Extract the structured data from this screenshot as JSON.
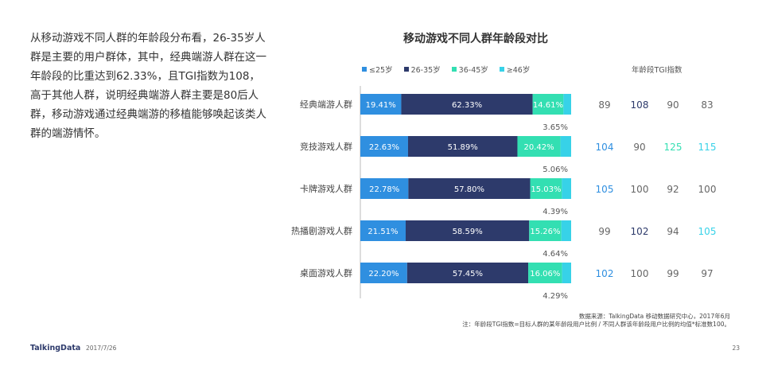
{
  "intro_text": "从移动游戏不同人群的年龄段分布看，26-35岁人群是主要的用户群体，其中，经典端游人群在这一年龄段的比重达到62.33%，且TGI指数为108，高于其他人群，说明经典端游人群主要是80后人群，移动游戏通过经典端游的移植能够唤起该类人群的端游情怀。",
  "footer": {
    "brand": "TalkingData",
    "date": "2017/7/26",
    "page": "23",
    "source_line1": "数据来源：TalkingData 移动数据研究中心，2017年6月",
    "source_line2": "注：年龄段TGI指数=目标人群的某年龄段用户比例 / 不同人群该年龄段用户比例的均值*标准数100。"
  },
  "colors": {
    "s1": "#2f8fe0",
    "s2": "#2d3a6b",
    "s3": "#33dfb2",
    "s4": "#37d2e8"
  },
  "chart_data": {
    "type": "bar",
    "orientation": "horizontal",
    "stacked": true,
    "title": "移动游戏不同人群年龄段对比",
    "categories": [
      "经典端游人群",
      "竞技游戏人群",
      "卡牌游戏人群",
      "热播剧游戏人群",
      "桌面游戏人群"
    ],
    "series": [
      {
        "name": "≤25岁",
        "values": [
          19.41,
          22.63,
          22.78,
          21.51,
          22.2
        ],
        "labels": [
          "19.41%",
          "22.63%",
          "22.78%",
          "21.51%",
          "22.20%"
        ]
      },
      {
        "name": "26-35岁",
        "values": [
          62.33,
          51.89,
          57.8,
          58.59,
          57.45
        ],
        "labels": [
          "62.33%",
          "51.89%",
          "57.80%",
          "58.59%",
          "57.45%"
        ]
      },
      {
        "name": "36-45岁",
        "values": [
          14.61,
          20.42,
          15.03,
          15.26,
          16.06
        ],
        "labels": [
          "14.61%",
          "20.42%",
          "15.03%",
          "15.26%",
          "16.06%"
        ]
      },
      {
        "name": "≥46岁",
        "values": [
          3.65,
          5.06,
          4.39,
          4.64,
          4.29
        ],
        "labels": [
          "3.65%",
          "5.06%",
          "4.39%",
          "4.64%",
          "4.29%"
        ]
      }
    ],
    "xlim": [
      0,
      100
    ],
    "tgi_title": "年龄段TGI指数",
    "tgi": [
      [
        "89",
        "108",
        "90",
        "83"
      ],
      [
        "104",
        "90",
        "125",
        "115"
      ],
      [
        "105",
        "100",
        "92",
        "100"
      ],
      [
        "99",
        "102",
        "94",
        "105"
      ],
      [
        "102",
        "100",
        "99",
        "97"
      ]
    ],
    "tgi_highlight": [
      [
        null,
        1,
        null,
        null
      ],
      [
        0,
        null,
        2,
        3
      ],
      [
        0,
        null,
        null,
        null
      ],
      [
        null,
        1,
        null,
        3
      ],
      [
        0,
        null,
        null,
        null
      ]
    ]
  }
}
